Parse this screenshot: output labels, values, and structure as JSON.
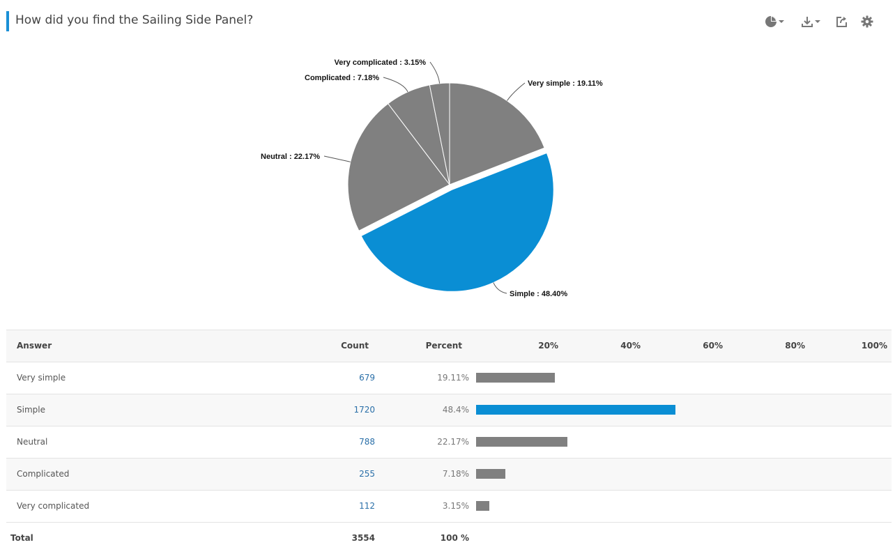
{
  "header": {
    "title": "How did you find the Sailing Side Panel?",
    "tools": [
      {
        "name": "chart-type-icon",
        "has_menu": true
      },
      {
        "name": "download-icon",
        "has_menu": true
      },
      {
        "name": "share-icon",
        "has_menu": false
      },
      {
        "name": "settings-icon",
        "has_menu": false
      }
    ]
  },
  "colors": {
    "accent": "#1a8fd6",
    "highlight": "#0a8ed4",
    "neutral_slice": "#808080",
    "link": "#2a6fa8"
  },
  "chart_data": {
    "type": "pie",
    "slices": [
      {
        "label": "Very simple",
        "value": 19.11,
        "display": "Very simple : 19.11%",
        "highlight": false
      },
      {
        "label": "Simple",
        "value": 48.4,
        "display": "Simple : 48.40%",
        "highlight": true
      },
      {
        "label": "Neutral",
        "value": 22.17,
        "display": "Neutral : 22.17%",
        "highlight": false
      },
      {
        "label": "Complicated",
        "value": 7.18,
        "display": "Complicated : 7.18%",
        "highlight": false
      },
      {
        "label": "Very complicated",
        "value": 3.15,
        "display": "Very complicated : 3.15%",
        "highlight": false
      }
    ]
  },
  "table": {
    "headers": {
      "answer": "Answer",
      "count": "Count",
      "percent": "Percent"
    },
    "scale": [
      "20%",
      "40%",
      "60%",
      "80%",
      "100%"
    ],
    "rows": [
      {
        "answer": "Very simple",
        "count": "679",
        "percent": "19.11%",
        "fraction": 0.1911,
        "highlight": false
      },
      {
        "answer": "Simple",
        "count": "1720",
        "percent": "48.4%",
        "fraction": 0.484,
        "highlight": true
      },
      {
        "answer": "Neutral",
        "count": "788",
        "percent": "22.17%",
        "fraction": 0.2217,
        "highlight": false
      },
      {
        "answer": "Complicated",
        "count": "255",
        "percent": "7.18%",
        "fraction": 0.0718,
        "highlight": false
      },
      {
        "answer": "Very complicated",
        "count": "112",
        "percent": "3.15%",
        "fraction": 0.0315,
        "highlight": false
      }
    ],
    "total": {
      "label": "Total",
      "count": "3554",
      "percent": "100 %"
    }
  }
}
